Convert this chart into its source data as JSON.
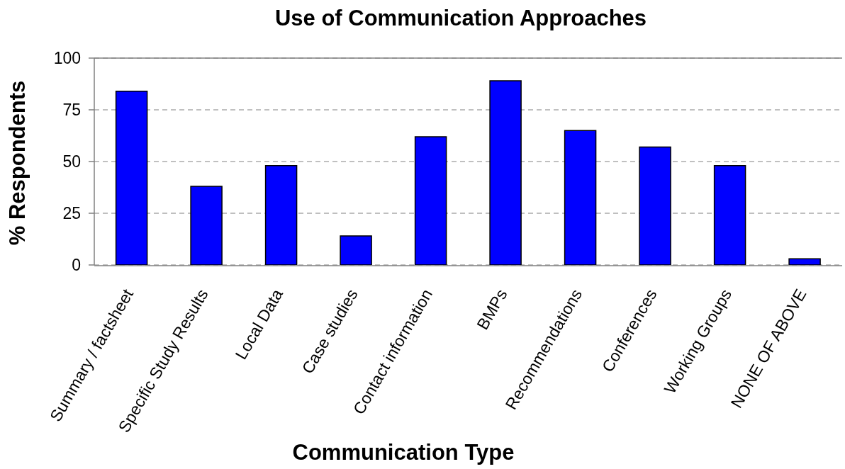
{
  "chart_data": {
    "type": "bar",
    "title": "Use of Communication Approaches",
    "xlabel": "Communication Type",
    "ylabel": "% Respondents",
    "categories": [
      "Summary / factsheet",
      "Specific Study Results",
      "Local Data",
      "Case studies",
      "Contact information",
      "BMPs",
      "Recommendations",
      "Conferences",
      "Working Groups",
      "NONE OF ABOVE"
    ],
    "values": [
      84,
      38,
      48,
      14,
      62,
      89,
      65,
      57,
      48,
      3
    ],
    "color": "#0000ff",
    "ylim": [
      0,
      100
    ],
    "yticks": [
      0,
      25,
      50,
      75,
      100
    ],
    "grid": "y"
  }
}
